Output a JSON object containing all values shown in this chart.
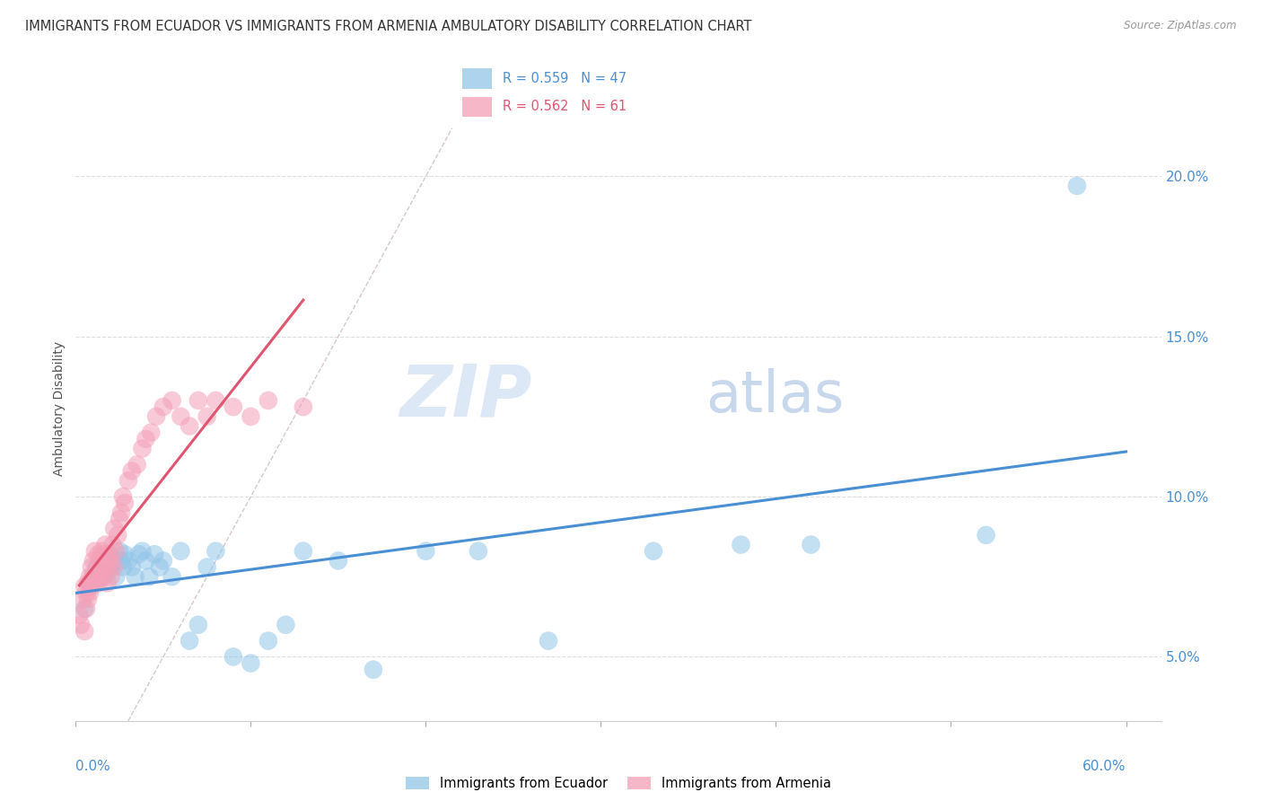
{
  "title": "IMMIGRANTS FROM ECUADOR VS IMMIGRANTS FROM ARMENIA AMBULATORY DISABILITY CORRELATION CHART",
  "source": "Source: ZipAtlas.com",
  "ylabel": "Ambulatory Disability",
  "xlim": [
    0.0,
    0.62
  ],
  "ylim": [
    0.03,
    0.225
  ],
  "xticks": [
    0.0,
    0.1,
    0.2,
    0.3,
    0.4,
    0.5,
    0.6
  ],
  "xticklabels_show": [
    "0.0%",
    "60.0%"
  ],
  "yticks": [
    0.05,
    0.1,
    0.15,
    0.2
  ],
  "yticklabels": [
    "5.0%",
    "10.0%",
    "15.0%",
    "20.0%"
  ],
  "ecuador_color": "#92C5E8",
  "armenia_color": "#F4A0B8",
  "ecuador_line_color": "#4A8FD4",
  "armenia_line_color": "#E05570",
  "R_ecuador": 0.559,
  "N_ecuador": 47,
  "R_armenia": 0.562,
  "N_armenia": 61,
  "watermark_zip": "ZIP",
  "watermark_atlas": "atlas",
  "ecuador_x": [
    0.005,
    0.008,
    0.01,
    0.012,
    0.015,
    0.016,
    0.017,
    0.018,
    0.019,
    0.02,
    0.022,
    0.023,
    0.025,
    0.026,
    0.027,
    0.028,
    0.03,
    0.032,
    0.034,
    0.036,
    0.038,
    0.04,
    0.042,
    0.045,
    0.048,
    0.05,
    0.055,
    0.06,
    0.065,
    0.07,
    0.075,
    0.08,
    0.09,
    0.1,
    0.11,
    0.12,
    0.13,
    0.15,
    0.17,
    0.2,
    0.23,
    0.27,
    0.33,
    0.38,
    0.42,
    0.52,
    0.572
  ],
  "ecuador_y": [
    0.065,
    0.072,
    0.075,
    0.078,
    0.075,
    0.08,
    0.078,
    0.076,
    0.082,
    0.078,
    0.08,
    0.075,
    0.083,
    0.08,
    0.078,
    0.082,
    0.08,
    0.078,
    0.075,
    0.082,
    0.083,
    0.08,
    0.075,
    0.082,
    0.078,
    0.08,
    0.075,
    0.083,
    0.055,
    0.06,
    0.078,
    0.083,
    0.05,
    0.048,
    0.055,
    0.06,
    0.083,
    0.08,
    0.046,
    0.083,
    0.083,
    0.055,
    0.083,
    0.085,
    0.085,
    0.088,
    0.197
  ],
  "armenia_x": [
    0.002,
    0.003,
    0.004,
    0.005,
    0.005,
    0.006,
    0.006,
    0.007,
    0.007,
    0.008,
    0.008,
    0.009,
    0.009,
    0.01,
    0.01,
    0.011,
    0.011,
    0.012,
    0.012,
    0.013,
    0.013,
    0.014,
    0.014,
    0.015,
    0.015,
    0.016,
    0.016,
    0.017,
    0.018,
    0.018,
    0.019,
    0.019,
    0.02,
    0.02,
    0.021,
    0.022,
    0.022,
    0.023,
    0.024,
    0.025,
    0.026,
    0.027,
    0.028,
    0.03,
    0.032,
    0.035,
    0.038,
    0.04,
    0.043,
    0.046,
    0.05,
    0.055,
    0.06,
    0.065,
    0.07,
    0.075,
    0.08,
    0.09,
    0.1,
    0.11,
    0.13
  ],
  "armenia_y": [
    0.063,
    0.06,
    0.068,
    0.058,
    0.072,
    0.065,
    0.07,
    0.073,
    0.068,
    0.075,
    0.07,
    0.078,
    0.072,
    0.075,
    0.08,
    0.073,
    0.083,
    0.075,
    0.078,
    0.082,
    0.073,
    0.08,
    0.075,
    0.083,
    0.078,
    0.082,
    0.075,
    0.085,
    0.08,
    0.073,
    0.082,
    0.078,
    0.08,
    0.075,
    0.085,
    0.09,
    0.078,
    0.083,
    0.088,
    0.093,
    0.095,
    0.1,
    0.098,
    0.105,
    0.108,
    0.11,
    0.115,
    0.118,
    0.12,
    0.125,
    0.128,
    0.13,
    0.125,
    0.122,
    0.13,
    0.125,
    0.13,
    0.128,
    0.125,
    0.13,
    0.128
  ],
  "background_color": "#FFFFFF",
  "grid_color": "#DDDDDD"
}
